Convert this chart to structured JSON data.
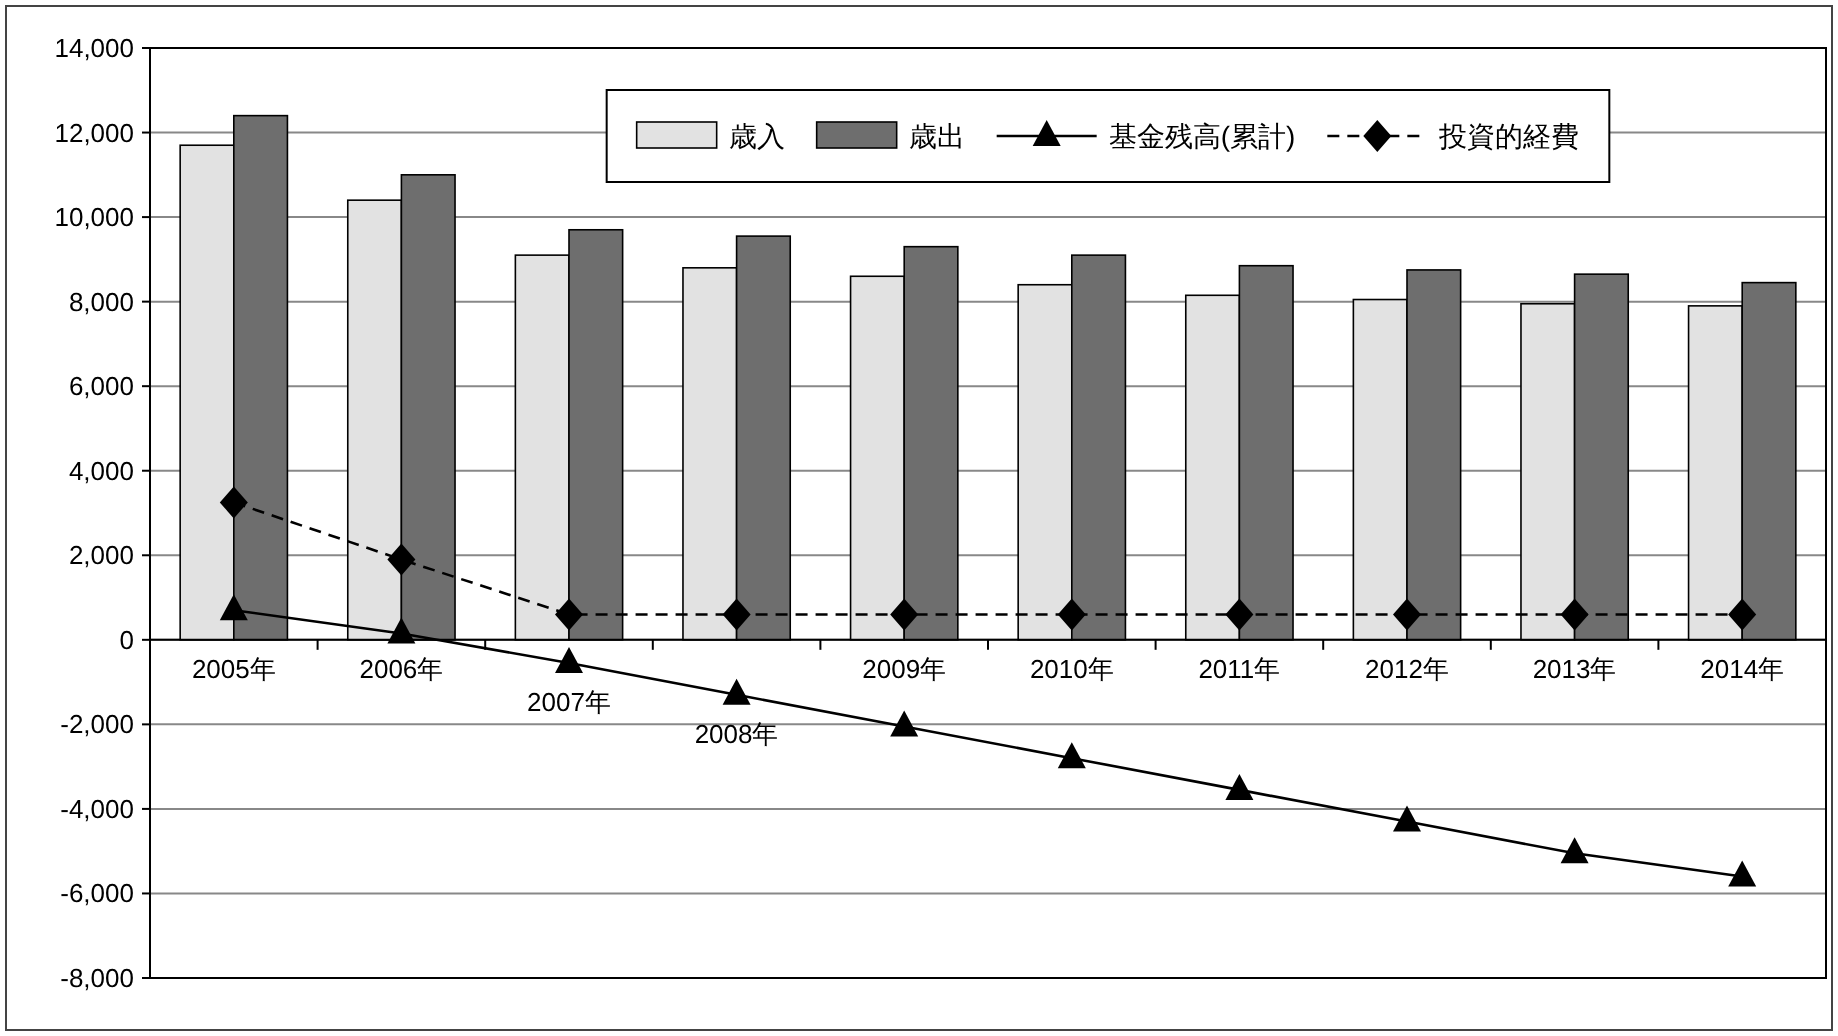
{
  "chart_data": {
    "type": "bar",
    "categories": [
      "2005年",
      "2006年",
      "2007年",
      "2008年",
      "2009年",
      "2010年",
      "2011年",
      "2012年",
      "2013年",
      "2014年"
    ],
    "series": [
      {
        "name": "歳入",
        "color": "#e2e2e2",
        "values": [
          11700,
          10400,
          9100,
          8800,
          8600,
          8400,
          8150,
          8050,
          7950,
          7900
        ]
      },
      {
        "name": "歳出",
        "color": "#6e6e6e",
        "values": [
          12400,
          11000,
          9700,
          9550,
          9300,
          9100,
          8850,
          8750,
          8650,
          8450
        ]
      },
      {
        "name": "基金残高(累計)",
        "type": "line",
        "color": "#000000",
        "marker": "triangle",
        "line_style": "solid",
        "values": [
          700,
          150,
          -550,
          -1300,
          -2050,
          -2800,
          -3550,
          -4300,
          -5050,
          -5600
        ]
      },
      {
        "name": "投資的経費",
        "type": "line",
        "color": "#000000",
        "marker": "diamond",
        "line_style": "dashed",
        "values": [
          3250,
          1900,
          600,
          600,
          600,
          600,
          600,
          600,
          600,
          600
        ]
      }
    ],
    "ylim": [
      -8000,
      14000
    ],
    "yticks": [
      {
        "value": -8000,
        "label": "-8,000"
      },
      {
        "value": -6000,
        "label": "-6,000"
      },
      {
        "value": -4000,
        "label": "-4,000"
      },
      {
        "value": -2000,
        "label": "-2,000"
      },
      0,
      {
        "value": 2000,
        "label": "2,000"
      },
      {
        "value": 4000,
        "label": "4,000"
      },
      {
        "value": 6000,
        "label": "6,000"
      },
      {
        "value": 8000,
        "label": "8,000"
      },
      {
        "value": 10000,
        "label": "10,000"
      },
      {
        "value": 12000,
        "label": "12,000"
      },
      {
        "value": 14000,
        "label": "14,000"
      }
    ],
    "grid": "y",
    "legend": "top"
  }
}
